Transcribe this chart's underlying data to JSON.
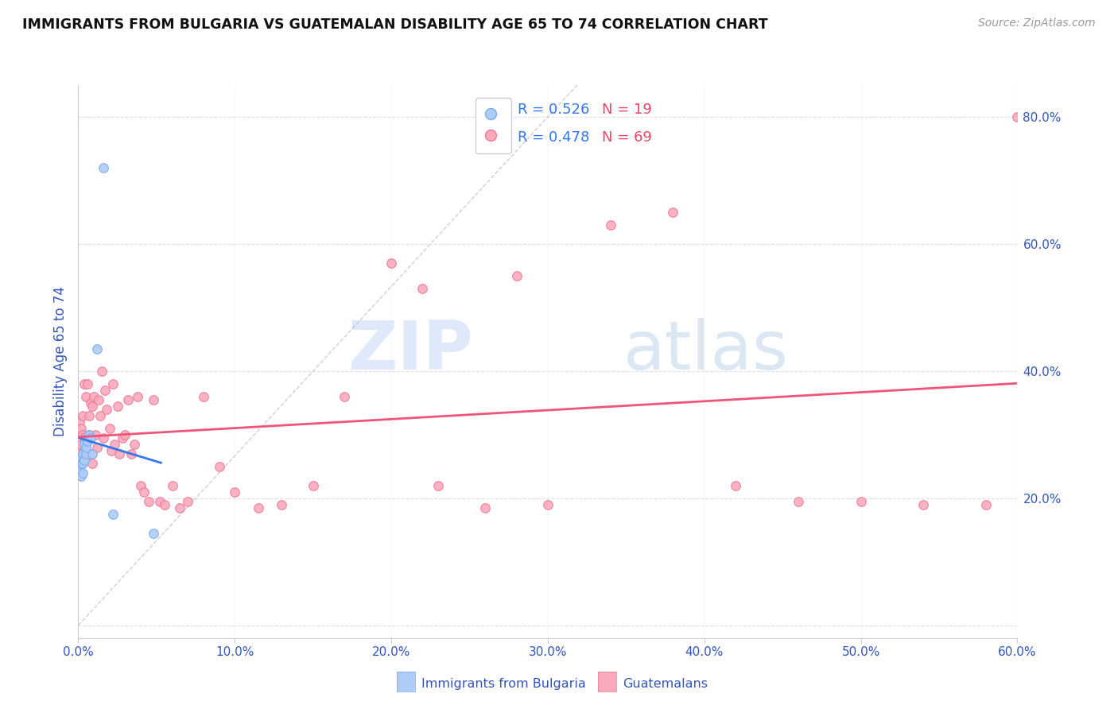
{
  "title": "IMMIGRANTS FROM BULGARIA VS GUATEMALAN DISABILITY AGE 65 TO 74 CORRELATION CHART",
  "source": "Source: ZipAtlas.com",
  "ylabel": "Disability Age 65 to 74",
  "legend_label1": "Immigrants from Bulgaria",
  "legend_label2": "Guatemalans",
  "r1": 0.526,
  "n1": 19,
  "r2": 0.478,
  "n2": 69,
  "color1": "#aeccf8",
  "color2": "#f8aabb",
  "line_color1": "#3377ee",
  "line_color2": "#ee5577",
  "ref_line_color": "#bbbbcc",
  "title_color": "#111111",
  "axis_label_color": "#3355bb",
  "tick_label_color": "#3355bb",
  "source_color": "#999999",
  "xlim": [
    0.0,
    0.6
  ],
  "ylim": [
    -0.02,
    0.85
  ],
  "xticks": [
    0.0,
    0.1,
    0.2,
    0.3,
    0.4,
    0.5,
    0.6
  ],
  "yticks": [
    0.0,
    0.2,
    0.4,
    0.6,
    0.8
  ],
  "xticklabels": [
    "0.0%",
    "10.0%",
    "20.0%",
    "30.0%",
    "40.0%",
    "50.0%",
    "60.0%"
  ],
  "yticklabels": [
    "",
    "20.0%",
    "40.0%",
    "60.0%",
    "80.0%"
  ],
  "bulgaria_x": [
    0.001,
    0.001,
    0.002,
    0.002,
    0.003,
    0.003,
    0.003,
    0.004,
    0.004,
    0.005,
    0.005,
    0.006,
    0.007,
    0.008,
    0.009,
    0.012,
    0.016,
    0.022,
    0.048
  ],
  "bulgaria_y": [
    0.245,
    0.265,
    0.235,
    0.255,
    0.24,
    0.255,
    0.27,
    0.26,
    0.285,
    0.27,
    0.28,
    0.29,
    0.3,
    0.295,
    0.27,
    0.435,
    0.72,
    0.175,
    0.145
  ],
  "guatemalan_x": [
    0.001,
    0.001,
    0.002,
    0.002,
    0.003,
    0.003,
    0.004,
    0.004,
    0.005,
    0.005,
    0.006,
    0.006,
    0.007,
    0.007,
    0.008,
    0.008,
    0.009,
    0.009,
    0.01,
    0.011,
    0.012,
    0.013,
    0.014,
    0.015,
    0.016,
    0.017,
    0.018,
    0.02,
    0.021,
    0.022,
    0.023,
    0.025,
    0.026,
    0.028,
    0.03,
    0.032,
    0.034,
    0.036,
    0.038,
    0.04,
    0.042,
    0.045,
    0.048,
    0.052,
    0.055,
    0.06,
    0.065,
    0.07,
    0.08,
    0.09,
    0.1,
    0.115,
    0.13,
    0.15,
    0.17,
    0.2,
    0.23,
    0.26,
    0.3,
    0.34,
    0.38,
    0.42,
    0.46,
    0.5,
    0.54,
    0.58,
    0.22,
    0.28,
    0.6
  ],
  "guatemalan_y": [
    0.27,
    0.32,
    0.285,
    0.31,
    0.3,
    0.33,
    0.295,
    0.38,
    0.27,
    0.36,
    0.29,
    0.38,
    0.3,
    0.33,
    0.27,
    0.35,
    0.255,
    0.345,
    0.36,
    0.3,
    0.28,
    0.355,
    0.33,
    0.4,
    0.295,
    0.37,
    0.34,
    0.31,
    0.275,
    0.38,
    0.285,
    0.345,
    0.27,
    0.295,
    0.3,
    0.355,
    0.27,
    0.285,
    0.36,
    0.22,
    0.21,
    0.195,
    0.355,
    0.195,
    0.19,
    0.22,
    0.185,
    0.195,
    0.36,
    0.25,
    0.21,
    0.185,
    0.19,
    0.22,
    0.36,
    0.57,
    0.22,
    0.185,
    0.19,
    0.63,
    0.65,
    0.22,
    0.195,
    0.195,
    0.19,
    0.19,
    0.53,
    0.55,
    0.8
  ],
  "watermark_zip": "ZIP",
  "watermark_atlas": "atlas",
  "background_color": "#ffffff",
  "grid_color": "#ddddee",
  "marker_size": 70,
  "marker_edge_width": 0.8,
  "marker_edge_color1": "#77aaee",
  "marker_edge_color2": "#ee7799"
}
